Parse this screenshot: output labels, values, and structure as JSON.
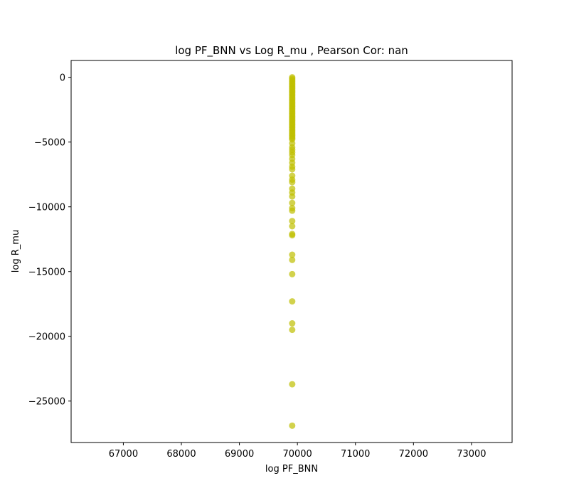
{
  "chart_data": {
    "type": "scatter",
    "title": "log PF_BNN vs Log R_mu , Pearson Cor: nan",
    "xlabel": "log PF_BNN",
    "ylabel": "log R_mu",
    "xlim": [
      66100,
      73700
    ],
    "ylim": [
      -28200,
      1300
    ],
    "x_ticks": [
      67000,
      68000,
      69000,
      70000,
      71000,
      72000,
      73000
    ],
    "x_tick_labels": [
      "67000",
      "68000",
      "69000",
      "70000",
      "71000",
      "72000",
      "73000"
    ],
    "y_ticks": [
      0,
      -5000,
      -10000,
      -15000,
      -20000,
      -25000
    ],
    "y_tick_labels": [
      "0",
      "−5000",
      "−10000",
      "−15000",
      "−20000",
      "−25000"
    ],
    "grid": false,
    "legend": "none",
    "point_color": "#bfbf00",
    "point_alpha": 0.7,
    "series": [
      {
        "x": [
          69910,
          69910,
          69910,
          69910,
          69910,
          69910,
          69910,
          69910,
          69910,
          69910,
          69910,
          69910,
          69910,
          69910,
          69910,
          69910,
          69910,
          69910,
          69910,
          69910,
          69910,
          69910,
          69910,
          69910,
          69910,
          69910,
          69910,
          69910,
          69910,
          69910,
          69910,
          69910,
          69910,
          69910,
          69910,
          69910,
          69910,
          69910,
          69910,
          69910,
          69910,
          69910,
          69910,
          69910,
          69910,
          69910,
          69910,
          69910,
          69910,
          69910,
          69910,
          69910,
          69910,
          69910,
          69910,
          69910,
          69910,
          69910,
          69910,
          69910,
          69910,
          69910,
          69910,
          69910,
          69910,
          69910,
          69910,
          69910,
          69910,
          69910,
          69910,
          69910,
          69910,
          69910,
          69910,
          69910,
          69910,
          69910,
          69910
        ],
        "y": [
          0,
          -100,
          -200,
          -300,
          -400,
          -500,
          -600,
          -700,
          -800,
          -900,
          -1000,
          -1100,
          -1200,
          -1300,
          -1400,
          -1500,
          -1600,
          -1700,
          -1800,
          -1900,
          -2000,
          -2100,
          -2200,
          -2300,
          -2400,
          -2500,
          -2600,
          -2700,
          -2800,
          -2900,
          -3000,
          -3100,
          -3200,
          -3300,
          -3400,
          -3500,
          -3600,
          -3700,
          -3800,
          -3900,
          -4000,
          -4100,
          -4200,
          -4300,
          -4400,
          -4500,
          -4600,
          -4700,
          -4800,
          -5100,
          -5400,
          -5600,
          -5800,
          -6000,
          -6300,
          -6600,
          -6900,
          -7100,
          -7600,
          -7900,
          -8100,
          -8600,
          -8900,
          -9200,
          -9700,
          -10100,
          -10300,
          -11100,
          -11500,
          -12100,
          -12200,
          -13700,
          -14100,
          -15200,
          -17300,
          -19000,
          -19500,
          -23700,
          -26900
        ]
      }
    ]
  }
}
